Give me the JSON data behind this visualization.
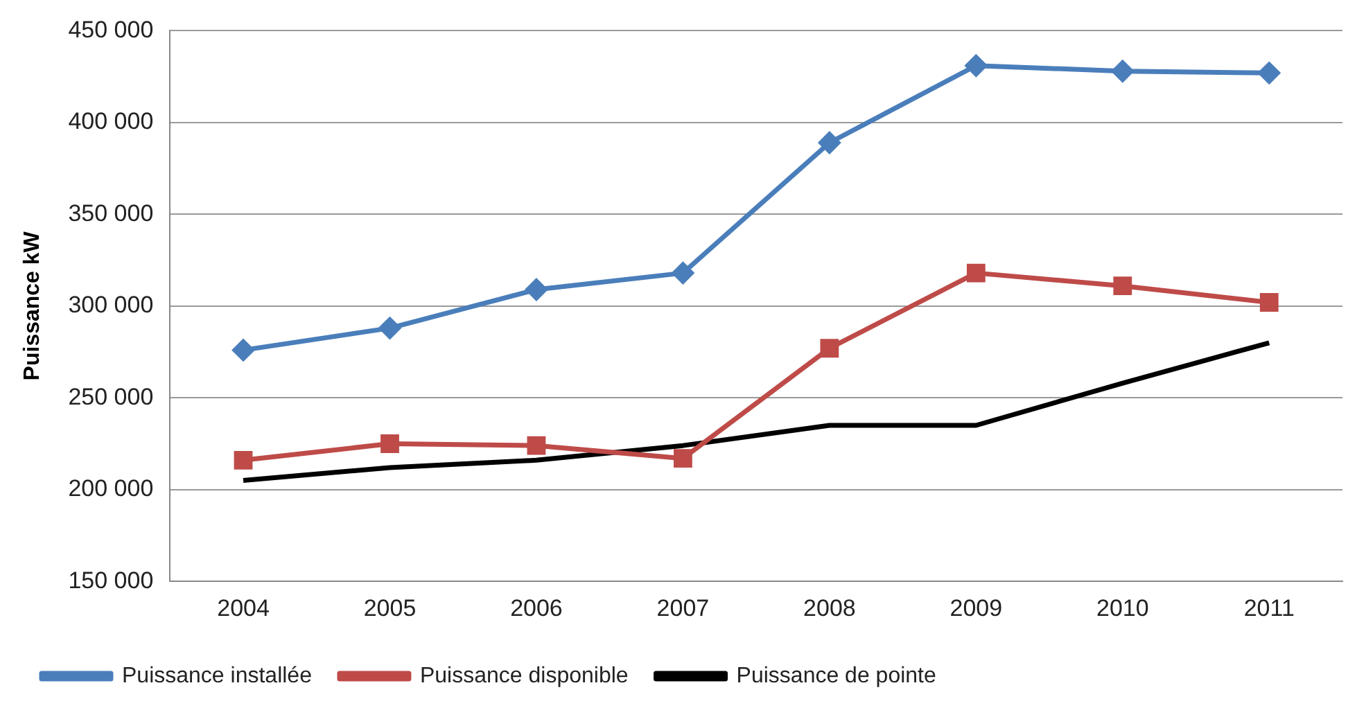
{
  "chart_data": {
    "type": "line",
    "ylabel": "Puissance kW",
    "categories": [
      "2004",
      "2005",
      "2006",
      "2007",
      "2008",
      "2009",
      "2010",
      "2011"
    ],
    "series": [
      {
        "name": "Puissance installée",
        "color": "#4a7ebb",
        "marker": "diamond",
        "values": [
          276000,
          288000,
          309000,
          318000,
          389000,
          431000,
          428000,
          427000
        ]
      },
      {
        "name": "Puissance disponible",
        "color": "#be4b48",
        "marker": "square",
        "values": [
          216000,
          225000,
          224000,
          217000,
          277000,
          318000,
          311000,
          302000
        ]
      },
      {
        "name": "Puissance de pointe",
        "color": "#000000",
        "marker": "none",
        "values": [
          205000,
          212000,
          216000,
          224000,
          235000,
          235000,
          258000,
          280000
        ]
      }
    ],
    "ylim": [
      150000,
      450000
    ],
    "yticks": [
      {
        "value": 150000,
        "label": "150 000"
      },
      {
        "value": 200000,
        "label": "200 000"
      },
      {
        "value": 250000,
        "label": "250 000"
      },
      {
        "value": 300000,
        "label": "300 000"
      },
      {
        "value": 350000,
        "label": "350 000"
      },
      {
        "value": 400000,
        "label": "400 000"
      },
      {
        "value": 450000,
        "label": "450 000"
      }
    ],
    "grid": "y",
    "legend": "bottom",
    "line_style": "solid"
  }
}
